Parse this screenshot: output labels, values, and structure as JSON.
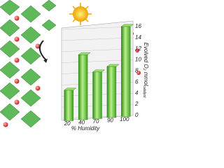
{
  "chart_data": {
    "type": "bar",
    "x_label": "% Humidity",
    "y_label": "Evolved O₂ mmol",
    "y_label_sub": "catalyst",
    "categories": [
      "20",
      "40",
      "70",
      "90",
      "100"
    ],
    "values": [
      5.5,
      11.7,
      8.4,
      9.2,
      16.2
    ],
    "color": "#4cb82a",
    "ylim": [
      0,
      16
    ],
    "yticks": [
      0,
      2,
      4,
      6,
      8,
      10,
      12,
      14,
      16
    ],
    "grid": true
  }
}
